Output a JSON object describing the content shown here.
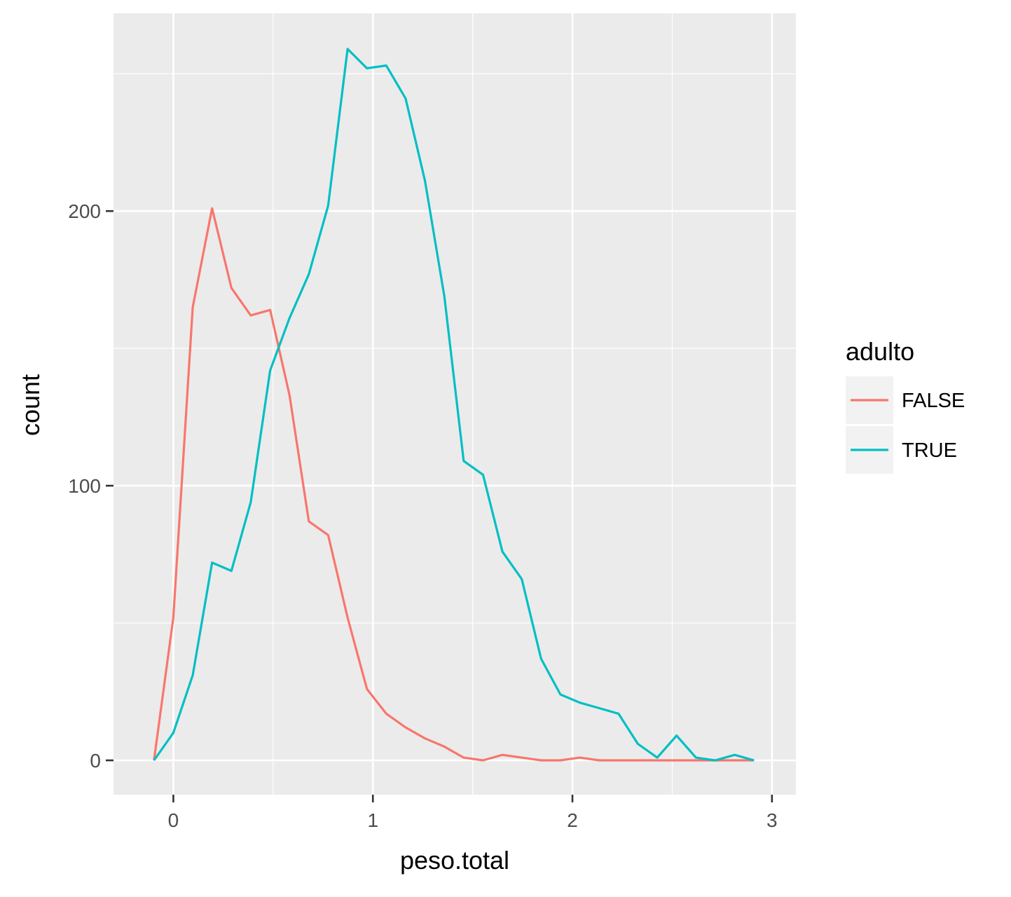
{
  "chart_data": {
    "type": "line",
    "xlabel": "peso.total",
    "ylabel": "count",
    "xlim": [
      -0.3,
      3.12
    ],
    "ylim": [
      -12.5,
      272
    ],
    "x_ticks": [
      0,
      1,
      2,
      3
    ],
    "x_tick_labels": [
      "0",
      "1",
      "2",
      "3"
    ],
    "y_ticks": [
      0,
      100,
      200
    ],
    "y_tick_labels": [
      "0",
      "100",
      "200"
    ],
    "grid": true,
    "legend": {
      "title": "adulto",
      "placement": "right",
      "entries": [
        "FALSE",
        "TRUE"
      ]
    },
    "x": [
      -0.097,
      0.0,
      0.097,
      0.194,
      0.291,
      0.388,
      0.485,
      0.582,
      0.679,
      0.776,
      0.873,
      0.97,
      1.067,
      1.164,
      1.261,
      1.358,
      1.455,
      1.552,
      1.649,
      1.746,
      1.843,
      1.94,
      2.037,
      2.134,
      2.231,
      2.328,
      2.425,
      2.522,
      2.619,
      2.716,
      2.813,
      2.91
    ],
    "series": [
      {
        "name": "FALSE",
        "color": "#F8766D",
        "values": [
          0,
          52,
          165,
          201,
          172,
          162,
          164,
          133,
          87,
          82,
          52,
          26,
          17,
          12,
          8,
          5,
          1,
          0,
          2,
          1,
          0,
          0,
          1,
          0,
          0,
          0,
          0,
          0,
          0,
          0,
          0,
          0
        ]
      },
      {
        "name": "TRUE",
        "color": "#00BFC4",
        "values": [
          0,
          10,
          31,
          72,
          69,
          94,
          142,
          161,
          177,
          202,
          259,
          252,
          253,
          241,
          211,
          169,
          109,
          104,
          76,
          66,
          37,
          24,
          21,
          19,
          17,
          6,
          1,
          9,
          1,
          0,
          2,
          0
        ]
      }
    ]
  }
}
